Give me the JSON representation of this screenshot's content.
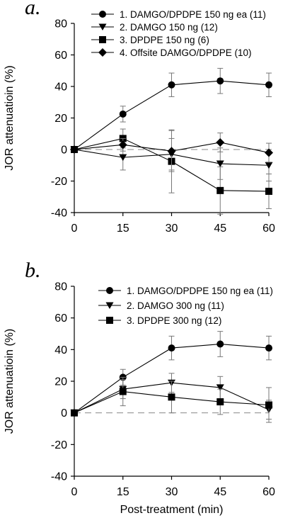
{
  "chart_data": [
    {
      "type": "line",
      "panel_label": "a.",
      "ylabel": "JOR attenuatioin (%)",
      "xlabel": "",
      "x": [
        0,
        15,
        30,
        45,
        60
      ],
      "xticks": [
        "0",
        "15",
        "30",
        "45",
        "60"
      ],
      "xlim": [
        0,
        60
      ],
      "ylim": [
        -40,
        80
      ],
      "yticks": [
        "-40",
        "-20",
        "0",
        "20",
        "40",
        "60",
        "80"
      ],
      "zero_line": "dashed",
      "legend_position": "top-right",
      "series": [
        {
          "name": "1. DAMGO/DPDPE 150 ng ea (11)",
          "marker": "circle",
          "values": [
            0,
            22.5,
            41,
            43.5,
            41
          ],
          "errors": [
            0,
            5,
            7.5,
            8,
            7.5
          ]
        },
        {
          "name": "2. DAMGO 150 ng (12)",
          "marker": "triangle-down",
          "values": [
            0,
            -5,
            -3,
            -9,
            -10
          ],
          "errors": [
            0,
            8,
            10,
            10,
            10
          ]
        },
        {
          "name": "3. DPDPE 150 ng (6)",
          "marker": "square",
          "values": [
            0,
            7,
            -7.5,
            -26,
            -26.5
          ],
          "errors": [
            0,
            6,
            20,
            15,
            11
          ]
        },
        {
          "name": "4. Offsite DAMGO/DPDPE (10)",
          "marker": "diamond",
          "values": [
            0,
            3,
            -1,
            4.5,
            -2
          ],
          "errors": [
            0,
            4,
            13,
            6,
            6
          ]
        }
      ]
    },
    {
      "type": "line",
      "panel_label": "b.",
      "ylabel": "JOR attenuatioin (%)",
      "xlabel": "Post-treatment (min)",
      "x": [
        0,
        15,
        30,
        45,
        60
      ],
      "xticks": [
        "0",
        "15",
        "30",
        "45",
        "60"
      ],
      "xlim": [
        0,
        60
      ],
      "ylim": [
        -40,
        80
      ],
      "yticks": [
        "-40",
        "-20",
        "0",
        "20",
        "40",
        "60",
        "80"
      ],
      "zero_line": "dashed",
      "legend_position": "top-right",
      "series": [
        {
          "name": "1. DAMGO/DPDPE 150 ng ea (11)",
          "marker": "circle",
          "values": [
            0,
            22.5,
            41,
            43.5,
            41
          ],
          "errors": [
            0,
            5,
            7.5,
            8,
            7.5
          ]
        },
        {
          "name": "2. DAMGO 300 ng (11)",
          "marker": "triangle-down",
          "values": [
            0,
            15,
            19,
            16,
            2
          ],
          "errors": [
            0,
            6,
            6,
            7,
            6
          ]
        },
        {
          "name": "3. DPDPE 300 ng (12)",
          "marker": "square",
          "values": [
            0,
            13.5,
            10,
            7,
            5
          ],
          "errors": [
            0,
            9,
            10,
            8,
            11
          ]
        }
      ]
    }
  ]
}
